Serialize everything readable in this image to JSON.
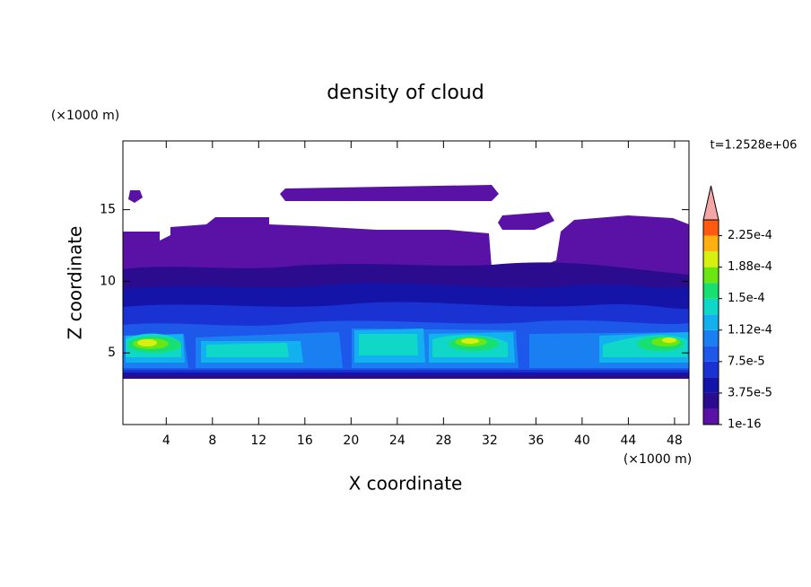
{
  "chart_data": {
    "type": "contour",
    "title": "density of cloud",
    "x_label": "X coordinate",
    "y_label": "Z coordinate",
    "x_unit": "(×1000 m)",
    "y_unit": "(×1000 m)",
    "annotation": "t=1.2528e+06",
    "xlim": [
      0.25,
      49.25
    ],
    "xticks": [
      4,
      8,
      12,
      16,
      20,
      24,
      28,
      32,
      36,
      40,
      44,
      48
    ],
    "ylim": [
      0,
      19.8
    ],
    "yticks": [
      5,
      10,
      15
    ],
    "colorbar": {
      "levels": [
        1e-16,
        1.875e-05,
        3.75e-05,
        5.625e-05,
        7.5e-05,
        9.375e-05,
        0.0001125,
        0.00013125,
        0.00015,
        0.00016875,
        0.0001875,
        0.00020625,
        0.000225,
        0.00024375
      ],
      "ticks": [
        1e-16,
        {
          "value": 3.75e-05,
          "label": "3.75e-5"
        },
        {
          "value": 7.5e-05,
          "label": "7.5e-5"
        },
        {
          "value": 0.0001125,
          "label": "1.12e-4"
        },
        {
          "value": 0.00015,
          "label": "1.5e-4"
        },
        {
          "value": 0.0001875,
          "label": "1.88e-4"
        },
        {
          "value": 0.000225,
          "label": "2.25e-4"
        }
      ],
      "colors": [
        "#5a12a6",
        "#2c0c8e",
        "#1414a8",
        "#1a32d2",
        "#1e58ea",
        "#1a80f2",
        "#12b0ee",
        "#10d8c8",
        "#18e070",
        "#6ae614",
        "#d8f010",
        "#ffb010",
        "#ff5a10"
      ],
      "extend_color": "#f4a6a6"
    }
  }
}
